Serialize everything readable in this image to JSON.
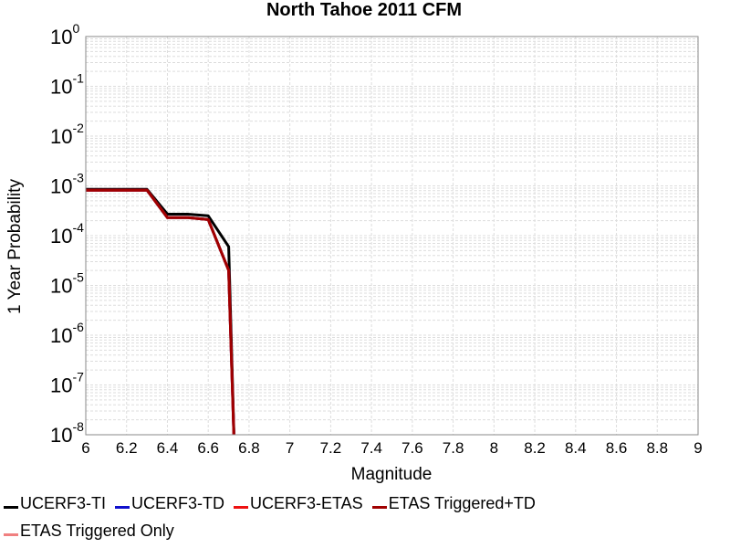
{
  "chart_data": {
    "type": "line",
    "title": "North Tahoe 2011 CFM",
    "xlabel": "Magnitude",
    "ylabel": "1 Year Probability",
    "xlim": [
      6,
      9
    ],
    "ylim": [
      1e-08,
      1
    ],
    "yscale": "log",
    "grid": true,
    "legend_position": "bottom",
    "x_ticks": [
      "6",
      "6.2",
      "6.4",
      "6.6",
      "6.8",
      "7",
      "7.2",
      "7.4",
      "7.6",
      "7.8",
      "8",
      "8.2",
      "8.4",
      "8.6",
      "8.8",
      "9"
    ],
    "y_ticks": [
      {
        "base": "10",
        "exp": "0"
      },
      {
        "base": "10",
        "exp": "-1"
      },
      {
        "base": "10",
        "exp": "-2"
      },
      {
        "base": "10",
        "exp": "-3"
      },
      {
        "base": "10",
        "exp": "-4"
      },
      {
        "base": "10",
        "exp": "-5"
      },
      {
        "base": "10",
        "exp": "-6"
      },
      {
        "base": "10",
        "exp": "-7"
      },
      {
        "base": "10",
        "exp": "-8"
      }
    ],
    "series": [
      {
        "name": "UCERF3-TI",
        "color": "#000000",
        "x": [
          6.0,
          6.1,
          6.2,
          6.3,
          6.4,
          6.5,
          6.6,
          6.7,
          6.73
        ],
        "y": [
          0.00085,
          0.00085,
          0.00085,
          0.00085,
          0.00027,
          0.00027,
          0.00025,
          6e-05,
          1e-09
        ]
      },
      {
        "name": "UCERF3-TD",
        "color": "#1010cc",
        "x": [
          6.0,
          6.1,
          6.2,
          6.3,
          6.4,
          6.5,
          6.6,
          6.7,
          6.73
        ],
        "y": [
          0.00082,
          0.00082,
          0.00082,
          0.00082,
          0.00023,
          0.00023,
          0.00021,
          2e-05,
          1e-09
        ]
      },
      {
        "name": "UCERF3-ETAS",
        "color": "#ee1111",
        "x": [
          6.0,
          6.1,
          6.2,
          6.3,
          6.4,
          6.5,
          6.6,
          6.7,
          6.73
        ],
        "y": [
          0.00082,
          0.00082,
          0.00082,
          0.00082,
          0.00023,
          0.00023,
          0.00021,
          2e-05,
          1e-09
        ]
      },
      {
        "name": "ETAS Triggered+TD",
        "color": "#a00000",
        "x": [
          6.0,
          6.1,
          6.2,
          6.3,
          6.4,
          6.5,
          6.6,
          6.7,
          6.73
        ],
        "y": [
          0.00082,
          0.00082,
          0.00082,
          0.00082,
          0.00023,
          0.00023,
          0.00021,
          2e-05,
          1e-09
        ]
      },
      {
        "name": "ETAS Triggered Only",
        "color": "#f08080",
        "x": [],
        "y": []
      }
    ]
  }
}
